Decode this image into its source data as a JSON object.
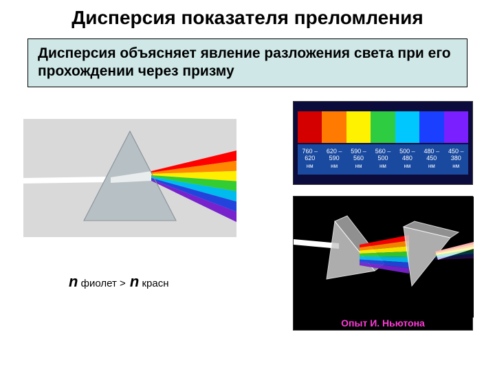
{
  "title": "Дисперсия показателя преломления",
  "subtitle_bg": "#cfe7e7",
  "subtitle": "Дисперсия объясняет явление разложения света при его прохождении через призму",
  "formula": {
    "n1": "n",
    "sub1": " фиолет ",
    "op": ">",
    "n2": " n",
    "sub2": " красн"
  },
  "prism": {
    "bg": "#d9d9d9",
    "triangle_fill": "#b7c1c5",
    "triangle_stroke": "#8a9399",
    "beam_in": "#ffffff",
    "rainbow": [
      "#ff0000",
      "#ff8800",
      "#ffee00",
      "#33cc33",
      "#00bbee",
      "#2244dd",
      "#7722cc"
    ]
  },
  "spectrum": {
    "bands": [
      {
        "color": "#d40000",
        "range1": "760 –",
        "range2": "620"
      },
      {
        "color": "#ff7a00",
        "range1": "620 –",
        "range2": "590"
      },
      {
        "color": "#fff200",
        "range1": "590 –",
        "range2": "560"
      },
      {
        "color": "#2ecc40",
        "range1": "560 –",
        "range2": "500"
      },
      {
        "color": "#00c8ff",
        "range1": "500 –",
        "range2": "480"
      },
      {
        "color": "#1a3fff",
        "range1": "480 –",
        "range2": "450"
      },
      {
        "color": "#7a1fff",
        "range1": "450 –",
        "range2": "380"
      }
    ],
    "unit": "нм"
  },
  "newton": {
    "caption": "Опыт И. Ньютона",
    "prism_fill": "#cccccc",
    "prism_stroke": "#ffffff",
    "beam": "#ffffff",
    "rainbow": [
      "#ff0000",
      "#ff8800",
      "#ffee00",
      "#33cc33",
      "#00bbee",
      "#2244dd",
      "#7722cc"
    ]
  }
}
